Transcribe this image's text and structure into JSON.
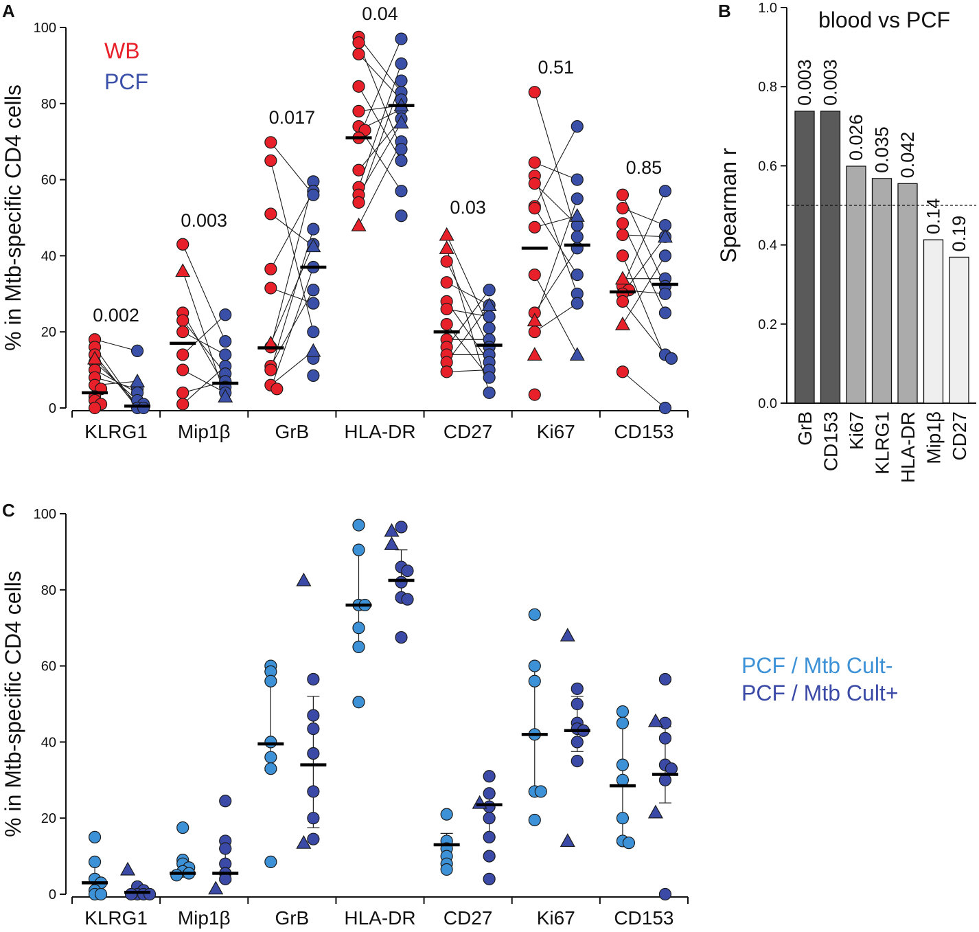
{
  "colors": {
    "wb": "#e8202a",
    "pcf": "#3a4fa8",
    "cult_neg": "#3d91d6",
    "cult_pos": "#3a4aa6",
    "bar_dark": "#5a5a5a",
    "bar_mid": "#ababab",
    "bar_light": "#efefef"
  },
  "chart_data": [
    {
      "panel": "A",
      "type": "scatter",
      "title": "",
      "ylabel": "% in Mtb-specific CD4 cells",
      "ylim": [
        0,
        100
      ],
      "yticks": [
        "0",
        "20",
        "40",
        "60",
        "80",
        "100"
      ],
      "categories": [
        "KLRG1",
        "Mip1β",
        "GrB",
        "HLA-DR",
        "CD27",
        "Ki67",
        "CD153"
      ],
      "legend": [
        "WB",
        "PCF"
      ],
      "pvalues": [
        "0.002",
        "0.003",
        "0.017",
        "0.04",
        "0.03",
        "0.51",
        "0.85"
      ],
      "series": [
        {
          "name": "WB",
          "medians": [
            4,
            17,
            15.8,
            71,
            20,
            42,
            30.5
          ],
          "circles": [
            [
              18,
              16,
              14,
              12,
              10,
              8,
              6,
              5,
              3,
              2,
              1,
              0
            ],
            [
              43,
              25,
              23,
              20,
              14,
              10,
              4,
              1
            ],
            [
              69.8,
              65,
              51,
              36.5,
              31.5,
              16,
              11,
              10,
              6,
              5
            ],
            [
              97.5,
              96,
              93,
              84.5,
              78,
              74,
              73,
              71,
              62.5,
              58,
              56,
              54
            ],
            [
              38.5,
              33,
              28,
              26,
              22,
              18,
              16,
              14,
              12,
              9.5
            ],
            [
              83,
              64.5,
              61,
              59,
              53,
              52.5,
              47.5,
              35,
              25,
              20,
              3.5
            ],
            [
              56,
              52.5,
              48.5,
              45.5,
              40,
              32,
              31,
              30,
              28,
              9.5
            ]
          ],
          "triangles": [
            [
              13
            ],
            [
              36
            ],
            [
              17
            ],
            [
              48
            ],
            [
              45.5,
              42
            ],
            [
              23,
              14
            ],
            [
              34,
              22
            ]
          ]
        },
        {
          "name": "PCF",
          "medians": [
            0.5,
            6.5,
            37,
            79.5,
            16.5,
            42.8,
            32.5
          ],
          "circles": [
            [
              15,
              5,
              4,
              2,
              1,
              0,
              0
            ],
            [
              24.5,
              17.5,
              14,
              11,
              9,
              7,
              5.5,
              4
            ],
            [
              59.5,
              57,
              56,
              47,
              43,
              37,
              31,
              27.5,
              20,
              13,
              8.5
            ],
            [
              97,
              90.5,
              86,
              83,
              81,
              78.5,
              76,
              70,
              68,
              65,
              57,
              50.5
            ],
            [
              31,
              27,
              24,
              21,
              18,
              16,
              14,
              12,
              10,
              8,
              4
            ],
            [
              74,
              60,
              55,
              48,
              45,
              42,
              35,
              30,
              27.5
            ],
            [
              57,
              48,
              45,
              40,
              34,
              32,
              30,
              25,
              14,
              13,
              0
            ]
          ],
          "triangles": [
            [
              7
            ],
            [
              3
            ],
            [
              42.5,
              15
            ],
            [
              79.5,
              75
            ],
            [
              27
            ],
            [
              50.5,
              14
            ],
            [
              45
            ]
          ]
        }
      ]
    },
    {
      "panel": "B",
      "type": "bar",
      "title": "blood vs PCF",
      "ylabel": "Spearman r",
      "ylim": [
        0,
        1.0
      ],
      "yticks": [
        "0.0",
        "0.2",
        "0.4",
        "0.6",
        "0.8",
        "1.0"
      ],
      "categories": [
        "GrB",
        "CD153",
        "Ki67",
        "KLRG1",
        "HLA-DR",
        "Mip1β",
        "CD27"
      ],
      "values": [
        0.738,
        0.738,
        0.599,
        0.568,
        0.555,
        0.413,
        0.369
      ],
      "labels": [
        "0.003",
        "0.003",
        "0.026",
        "0.035",
        "0.042",
        "0.14",
        "0.19"
      ],
      "shade": [
        "dark",
        "dark",
        "mid",
        "mid",
        "mid",
        "light",
        "light"
      ],
      "reference_line": 0.5
    },
    {
      "panel": "C",
      "type": "scatter",
      "ylabel": "% in Mtb-specific CD4 cells",
      "ylim": [
        0,
        100
      ],
      "yticks": [
        "0",
        "20",
        "40",
        "60",
        "80",
        "100"
      ],
      "categories": [
        "KLRG1",
        "Mip1β",
        "GrB",
        "HLA-DR",
        "CD27",
        "Ki67",
        "CD153"
      ],
      "legend": [
        "PCF / Mtb Cult-",
        "PCF / Mtb Cult+"
      ],
      "series": [
        {
          "name": "PCF / Mtb Cult-",
          "medians": [
            3,
            5.5,
            39.5,
            76,
            13,
            42,
            28.5
          ],
          "error": [
            [
              0,
              8.5
            ],
            [
              5,
              8.5
            ],
            [
              32.5,
              58.5
            ],
            [
              65,
              90.5
            ],
            [
              10,
              16
            ],
            [
              27,
              60
            ],
            [
              13.5,
              45
            ]
          ],
          "circles": [
            [
              15,
              8.5,
              4,
              3,
              1,
              0,
              0
            ],
            [
              17.5,
              9,
              8,
              7,
              6,
              5.5,
              5
            ],
            [
              60,
              58.5,
              56,
              40,
              36,
              33,
              8.5
            ],
            [
              97,
              90.5,
              76,
              76,
              70,
              65,
              50.5
            ],
            [
              21,
              14,
              12,
              10,
              8,
              6.5
            ],
            [
              73.5,
              60,
              56,
              42,
              27,
              27,
              19.5
            ],
            [
              48,
              45,
              34,
              30,
              20,
              14,
              13.5
            ]
          ],
          "triangles": [
            [],
            [],
            [],
            [],
            [],
            [],
            []
          ]
        },
        {
          "name": "PCF / Mtb Cult+",
          "medians": [
            0.5,
            5.5,
            34,
            82.5,
            23.5,
            43,
            31.5
          ],
          "error": [
            [
              0,
              2
            ],
            [
              3.5,
              12
            ],
            [
              17.5,
              52
            ],
            [
              77.5,
              90.5
            ],
            [
              15,
              26.5
            ],
            [
              37.5,
              52
            ],
            [
              24,
              44
            ]
          ],
          "circles": [
            [
              2,
              1,
              0,
              0,
              0,
              0
            ],
            [
              24.5,
              14,
              12,
              8,
              5.5,
              4
            ],
            [
              56.5,
              47,
              43.5,
              37,
              27,
              20,
              14.5
            ],
            [
              96.5,
              86,
              85,
              82,
              78,
              77.5,
              67.5
            ],
            [
              31,
              26.5,
              23,
              20,
              15,
              10,
              4
            ],
            [
              54,
              50,
              45,
              43.5,
              43,
              40,
              35
            ],
            [
              56.5,
              45,
              41,
              34,
              33,
              30,
              0
            ]
          ],
          "triangles": [
            [
              6.5
            ],
            [
              1.5
            ],
            [
              82.5,
              13.5
            ],
            [
              95.5,
              92
            ],
            [
              24
            ],
            [
              68,
              14
            ],
            [
              45.5,
              21.5
            ]
          ]
        }
      ]
    }
  ]
}
